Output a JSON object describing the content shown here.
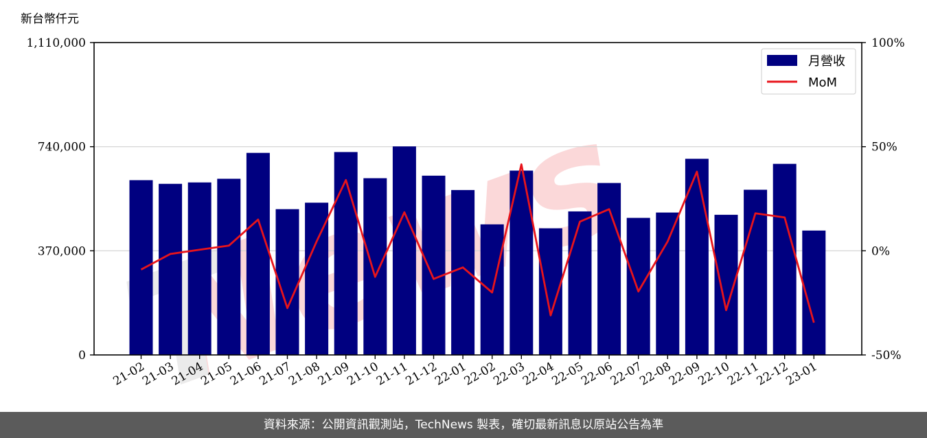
{
  "chart_data": {
    "type": "bar",
    "y_unit_label": "新台幣仟元",
    "categories": [
      "21-02",
      "21-03",
      "21-04",
      "21-05",
      "21-06",
      "21-07",
      "21-08",
      "21-09",
      "21-10",
      "21-11",
      "21-12",
      "22-01",
      "22-02",
      "22-03",
      "22-04",
      "22-05",
      "22-06",
      "22-07",
      "22-08",
      "22-09",
      "22-10",
      "22-11",
      "22-12",
      "23-01"
    ],
    "series": [
      {
        "name": "月營收",
        "type": "bar",
        "axis": "left",
        "color": "#000080",
        "values": [
          621000,
          608000,
          613000,
          626000,
          718000,
          518000,
          541000,
          721000,
          628000,
          741000,
          637000,
          586000,
          464000,
          655000,
          450000,
          510000,
          611000,
          487000,
          506000,
          697000,
          498000,
          587000,
          679000,
          442000
        ]
      },
      {
        "name": "MoM",
        "type": "line",
        "axis": "right",
        "color": "#e8141b",
        "values": [
          -9.0,
          -1.5,
          0.5,
          2.5,
          15.0,
          -27.5,
          4.5,
          34.0,
          -12.5,
          18.5,
          -13.5,
          -8.0,
          -20.0,
          41.5,
          -31.0,
          14.0,
          20.0,
          -19.5,
          4.5,
          38.0,
          -28.5,
          18.0,
          16.0,
          -34.5
        ]
      }
    ],
    "y_left": {
      "min": 0,
      "max": 1110000,
      "ticks": [
        0,
        370000,
        740000,
        1110000
      ],
      "tick_labels": [
        "0",
        "370,000",
        "740,000",
        "1,110,000"
      ]
    },
    "y_right": {
      "min": -50,
      "max": 100,
      "ticks": [
        -50,
        0,
        50,
        100
      ],
      "tick_labels": [
        "-50%",
        "0%",
        "50%",
        "100%"
      ]
    },
    "grid": "horizontal",
    "legend": {
      "placement": "top-right",
      "entries": [
        "月營收",
        "MoM"
      ]
    }
  },
  "footer": {
    "text": "資料來源：公開資訊觀測站，TechNews 製表，確切最新訊息以原站公告為準"
  }
}
